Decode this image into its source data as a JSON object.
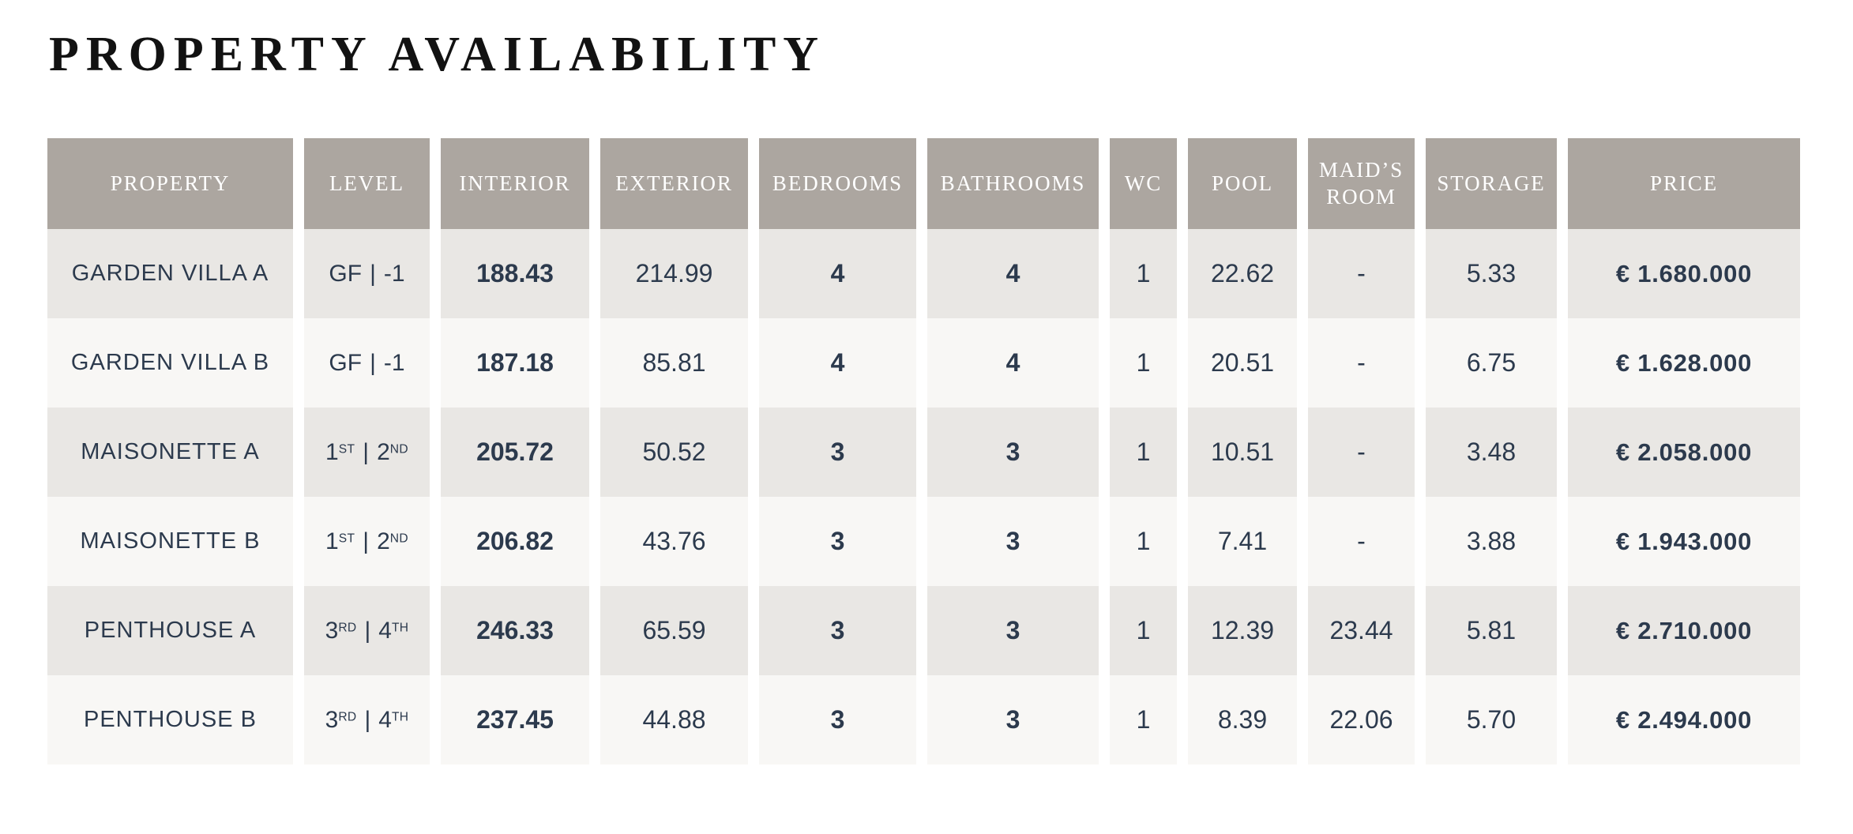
{
  "page": {
    "title": "PROPERTY AVAILABILITY"
  },
  "colors": {
    "header_bg": "#aca6a0",
    "header_text": "#ffffff",
    "row_odd_bg": "#e9e7e4",
    "row_even_bg": "#f8f7f5",
    "body_text": "#2c3a4d",
    "title_text": "#121212"
  },
  "table": {
    "headers": [
      "PROPERTY",
      "LEVEL",
      "INTERIOR",
      "EXTERIOR",
      "BEDROOMS",
      "BATHROOMS",
      "WC",
      "POOL",
      "MAID’S ROOM",
      "STORAGE",
      "PRICE"
    ],
    "rows": [
      {
        "property": "GARDEN VILLA A",
        "level": {
          "l": "GF",
          "lsup": "",
          "sep": "|",
          "r": "-1",
          "rsup": ""
        },
        "interior": "188.43",
        "exterior": "214.99",
        "bedrooms": "4",
        "bathrooms": "4",
        "wc": "1",
        "pool": "22.62",
        "maids_room": "-",
        "storage": "5.33",
        "price": "€ 1.680.000"
      },
      {
        "property": "GARDEN VILLA B",
        "level": {
          "l": "GF",
          "lsup": "",
          "sep": "|",
          "r": "-1",
          "rsup": ""
        },
        "interior": "187.18",
        "exterior": "85.81",
        "bedrooms": "4",
        "bathrooms": "4",
        "wc": "1",
        "pool": "20.51",
        "maids_room": "-",
        "storage": "6.75",
        "price": "€ 1.628.000"
      },
      {
        "property": "MAISONETTE A",
        "level": {
          "l": "1",
          "lsup": "ST",
          "sep": "|",
          "r": "2",
          "rsup": "ND"
        },
        "interior": "205.72",
        "exterior": "50.52",
        "bedrooms": "3",
        "bathrooms": "3",
        "wc": "1",
        "pool": "10.51",
        "maids_room": "-",
        "storage": "3.48",
        "price": "€ 2.058.000"
      },
      {
        "property": "MAISONETTE B",
        "level": {
          "l": "1",
          "lsup": "ST",
          "sep": "|",
          "r": "2",
          "rsup": "ND"
        },
        "interior": "206.82",
        "exterior": "43.76",
        "bedrooms": "3",
        "bathrooms": "3",
        "wc": "1",
        "pool": "7.41",
        "maids_room": "-",
        "storage": "3.88",
        "price": "€ 1.943.000"
      },
      {
        "property": "PENTHOUSE A",
        "level": {
          "l": "3",
          "lsup": "RD",
          "sep": "|",
          "r": "4",
          "rsup": "TH"
        },
        "interior": "246.33",
        "exterior": "65.59",
        "bedrooms": "3",
        "bathrooms": "3",
        "wc": "1",
        "pool": "12.39",
        "maids_room": "23.44",
        "storage": "5.81",
        "price": "€ 2.710.000"
      },
      {
        "property": "PENTHOUSE B",
        "level": {
          "l": "3",
          "lsup": "RD",
          "sep": "|",
          "r": "4",
          "rsup": "TH"
        },
        "interior": "237.45",
        "exterior": "44.88",
        "bedrooms": "3",
        "bathrooms": "3",
        "wc": "1",
        "pool": "8.39",
        "maids_room": "22.06",
        "storage": "5.70",
        "price": "€ 2.494.000"
      }
    ]
  }
}
